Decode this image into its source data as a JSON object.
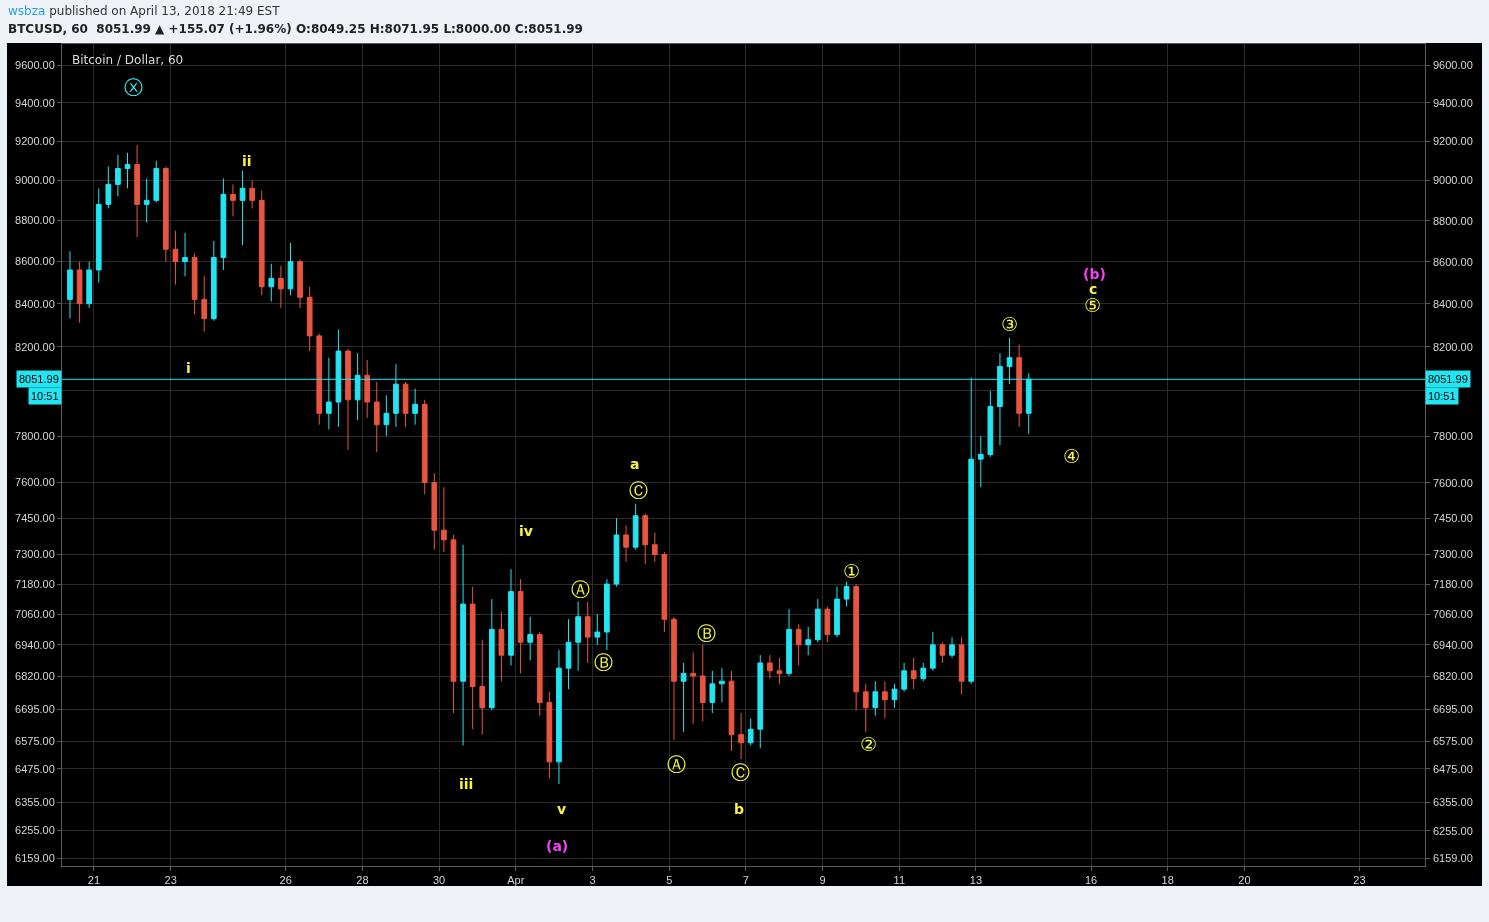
{
  "chart_data": {
    "type": "candlestick",
    "title": "Bitcoin / Dollar, 60",
    "annotations": [
      "wsbza published on April 13, 2018 21:49 EST",
      "BTCUSD, 60  8051.99 ▲ +155.07 (+1.96%) O:8049.25 H:8071.95 L:8000.00 C:8051.99",
      "10:51",
      "ⓧ",
      "ii",
      "i",
      "iii",
      "iv",
      "v",
      "(a)",
      "a",
      "Ⓒ",
      "Ⓐ",
      "Ⓑ",
      "Ⓑ",
      "Ⓐ",
      "Ⓒ",
      "b",
      "①",
      "②",
      "③",
      "④",
      "⑤",
      "c",
      "(b)"
    ],
    "x": [
      "2018-03-20T09:00",
      "2018-03-20T15:00",
      "2018-03-20T21:00",
      "2018-03-21T03:00",
      "2018-03-21T09:00",
      "2018-03-21T15:00",
      "2018-03-21T21:00",
      "2018-03-22T03:00",
      "2018-03-22T09:00",
      "2018-03-22T15:00",
      "2018-03-22T21:00",
      "2018-03-23T03:00",
      "2018-03-23T09:00",
      "2018-03-23T15:00",
      "2018-03-23T21:00",
      "2018-03-24T03:00",
      "2018-03-24T09:00",
      "2018-03-24T15:00",
      "2018-03-24T21:00",
      "2018-03-25T03:00",
      "2018-03-25T09:00",
      "2018-03-25T15:00",
      "2018-03-25T21:00",
      "2018-03-26T03:00",
      "2018-03-26T09:00",
      "2018-03-26T15:00",
      "2018-03-26T21:00",
      "2018-03-27T03:00",
      "2018-03-27T09:00",
      "2018-03-27T15:00",
      "2018-03-27T21:00",
      "2018-03-28T03:00",
      "2018-03-28T09:00",
      "2018-03-28T15:00",
      "2018-03-28T21:00",
      "2018-03-29T03:00",
      "2018-03-29T09:00",
      "2018-03-29T15:00",
      "2018-03-29T21:00",
      "2018-03-30T03:00",
      "2018-03-30T09:00",
      "2018-03-30T15:00",
      "2018-03-30T21:00",
      "2018-03-31T03:00",
      "2018-03-31T09:00",
      "2018-03-31T15:00",
      "2018-03-31T21:00",
      "2018-04-01T03:00",
      "2018-04-01T09:00",
      "2018-04-01T15:00",
      "2018-04-01T21:00",
      "2018-04-02T03:00",
      "2018-04-02T09:00",
      "2018-04-02T15:00",
      "2018-04-02T21:00",
      "2018-04-03T03:00",
      "2018-04-03T09:00",
      "2018-04-03T15:00",
      "2018-04-03T21:00",
      "2018-04-04T03:00",
      "2018-04-04T09:00",
      "2018-04-04T15:00",
      "2018-04-04T21:00",
      "2018-04-05T03:00",
      "2018-04-05T09:00",
      "2018-04-05T15:00",
      "2018-04-05T21:00",
      "2018-04-06T03:00",
      "2018-04-06T09:00",
      "2018-04-06T15:00",
      "2018-04-06T21:00",
      "2018-04-07T03:00",
      "2018-04-07T09:00",
      "2018-04-07T15:00",
      "2018-04-07T21:00",
      "2018-04-08T03:00",
      "2018-04-08T09:00",
      "2018-04-08T15:00",
      "2018-04-08T21:00",
      "2018-04-09T03:00",
      "2018-04-09T09:00",
      "2018-04-09T15:00",
      "2018-04-09T21:00",
      "2018-04-10T03:00",
      "2018-04-10T09:00",
      "2018-04-10T15:00",
      "2018-04-10T21:00",
      "2018-04-11T03:00",
      "2018-04-11T09:00",
      "2018-04-11T15:00",
      "2018-04-11T21:00",
      "2018-04-12T03:00",
      "2018-04-12T09:00",
      "2018-04-12T15:00",
      "2018-04-12T21:00",
      "2018-04-13T03:00",
      "2018-04-13T09:00",
      "2018-04-13T15:00",
      "2018-04-13T21:00",
      "2018-04-14T03:00",
      "2018-04-14T09:00"
    ],
    "ohlc": [
      [
        8420,
        8650,
        8330,
        8560
      ],
      [
        8560,
        8600,
        8310,
        8400
      ],
      [
        8400,
        8600,
        8380,
        8560
      ],
      [
        8560,
        8960,
        8500,
        8880
      ],
      [
        8880,
        9070,
        8860,
        8980
      ],
      [
        8980,
        9130,
        8920,
        9060
      ],
      [
        9060,
        9140,
        8960,
        9080
      ],
      [
        9080,
        9180,
        8720,
        8880
      ],
      [
        8880,
        9010,
        8790,
        8900
      ],
      [
        8900,
        9100,
        8890,
        9060
      ],
      [
        9060,
        9070,
        8600,
        8660
      ],
      [
        8660,
        8750,
        8490,
        8600
      ],
      [
        8600,
        8740,
        8530,
        8620
      ],
      [
        8620,
        8640,
        8350,
        8420
      ],
      [
        8420,
        8530,
        8270,
        8330
      ],
      [
        8330,
        8700,
        8320,
        8620
      ],
      [
        8620,
        9010,
        8560,
        8930
      ],
      [
        8930,
        8980,
        8820,
        8900
      ],
      [
        8900,
        9050,
        8680,
        8960
      ],
      [
        8960,
        9000,
        8860,
        8900
      ],
      [
        8900,
        8950,
        8440,
        8480
      ],
      [
        8480,
        8590,
        8410,
        8520
      ],
      [
        8520,
        8580,
        8380,
        8470
      ],
      [
        8470,
        8690,
        8440,
        8600
      ],
      [
        8600,
        8610,
        8380,
        8430
      ],
      [
        8430,
        8480,
        8180,
        8250
      ],
      [
        8250,
        8260,
        7850,
        7900
      ],
      [
        7900,
        8150,
        7830,
        7950
      ],
      [
        7950,
        8280,
        7840,
        8180
      ],
      [
        8180,
        8190,
        7740,
        7960
      ],
      [
        7960,
        8170,
        7870,
        8070
      ],
      [
        8070,
        8140,
        7880,
        7950
      ],
      [
        7950,
        8040,
        7730,
        7850
      ],
      [
        7850,
        7980,
        7800,
        7900
      ],
      [
        7900,
        8120,
        7840,
        8030
      ],
      [
        8030,
        8040,
        7840,
        7900
      ],
      [
        7900,
        8010,
        7850,
        7940
      ],
      [
        7940,
        7960,
        7550,
        7600
      ],
      [
        7600,
        7640,
        7320,
        7400
      ],
      [
        7400,
        7580,
        7310,
        7360
      ],
      [
        7360,
        7380,
        6680,
        6800
      ],
      [
        6800,
        7340,
        6560,
        7100
      ],
      [
        7100,
        7170,
        6620,
        6780
      ],
      [
        6780,
        6960,
        6600,
        6700
      ],
      [
        6700,
        7120,
        6690,
        7000
      ],
      [
        7000,
        7070,
        6800,
        6900
      ],
      [
        6900,
        7240,
        6860,
        7150
      ],
      [
        7150,
        7200,
        6830,
        6950
      ],
      [
        6950,
        7050,
        6880,
        6980
      ],
      [
        6980,
        6990,
        6670,
        6720
      ],
      [
        6720,
        6760,
        6440,
        6500
      ],
      [
        6500,
        6920,
        6420,
        6850
      ],
      [
        6850,
        7040,
        6770,
        6950
      ],
      [
        6950,
        7110,
        6840,
        7050
      ],
      [
        7050,
        7110,
        6870,
        6970
      ],
      [
        6970,
        7060,
        6940,
        6990
      ],
      [
        6990,
        7200,
        6920,
        7180
      ],
      [
        7180,
        7450,
        7170,
        7380
      ],
      [
        7380,
        7420,
        7270,
        7330
      ],
      [
        7330,
        7510,
        7320,
        7460
      ],
      [
        7460,
        7470,
        7260,
        7340
      ],
      [
        7340,
        7390,
        7270,
        7300
      ],
      [
        7300,
        7310,
        6990,
        7040
      ],
      [
        7040,
        7050,
        6580,
        6800
      ],
      [
        6800,
        6870,
        6610,
        6830
      ],
      [
        6830,
        6910,
        6640,
        6820
      ],
      [
        6820,
        6940,
        6650,
        6720
      ],
      [
        6720,
        6840,
        6680,
        6790
      ],
      [
        6790,
        6850,
        6720,
        6800
      ],
      [
        6800,
        6840,
        6540,
        6600
      ],
      [
        6600,
        6680,
        6510,
        6570
      ],
      [
        6570,
        6660,
        6560,
        6620
      ],
      [
        6620,
        6900,
        6550,
        6870
      ],
      [
        6870,
        6900,
        6810,
        6840
      ],
      [
        6840,
        6890,
        6790,
        6830
      ],
      [
        6830,
        7080,
        6820,
        7000
      ],
      [
        7000,
        7020,
        6860,
        6940
      ],
      [
        6940,
        7010,
        6900,
        6960
      ],
      [
        6960,
        7120,
        6950,
        7080
      ],
      [
        7080,
        7090,
        6950,
        6980
      ],
      [
        6980,
        7170,
        6970,
        7120
      ],
      [
        7120,
        7190,
        7090,
        7170
      ],
      [
        7170,
        7180,
        6690,
        6760
      ],
      [
        6760,
        6790,
        6610,
        6700
      ],
      [
        6700,
        6800,
        6670,
        6760
      ],
      [
        6760,
        6800,
        6660,
        6730
      ],
      [
        6730,
        6790,
        6700,
        6770
      ],
      [
        6770,
        6870,
        6760,
        6840
      ],
      [
        6840,
        6890,
        6770,
        6810
      ],
      [
        6810,
        6870,
        6800,
        6850
      ],
      [
        6850,
        6990,
        6840,
        6940
      ],
      [
        6940,
        6950,
        6870,
        6900
      ],
      [
        6900,
        6970,
        6890,
        6940
      ],
      [
        6940,
        6970,
        6750,
        6800
      ],
      [
        6800,
        8060,
        6790,
        7700
      ],
      [
        7700,
        7800,
        7580,
        7720
      ],
      [
        7720,
        8000,
        7710,
        7930
      ],
      [
        7930,
        8170,
        7760,
        8110
      ],
      [
        8110,
        8240,
        8030,
        8150
      ],
      [
        8150,
        8210,
        7840,
        7900
      ],
      [
        7900,
        8080,
        7810,
        8051.99
      ]
    ],
    "colors": [
      "#21e6f2",
      "#e8563f",
      "#21e6f2",
      "#21e6f2",
      "#21e6f2",
      "#21e6f2",
      "#21e6f2",
      "#e8563f",
      "#21e6f2",
      "#21e6f2",
      "#e8563f",
      "#e8563f",
      "#21e6f2",
      "#e8563f",
      "#e8563f",
      "#21e6f2",
      "#21e6f2",
      "#e8563f",
      "#21e6f2",
      "#e8563f",
      "#e8563f",
      "#21e6f2",
      "#e8563f",
      "#21e6f2",
      "#e8563f",
      "#e8563f",
      "#e8563f",
      "#21e6f2",
      "#21e6f2",
      "#e8563f",
      "#21e6f2",
      "#e8563f",
      "#e8563f",
      "#21e6f2",
      "#21e6f2",
      "#e8563f",
      "#21e6f2",
      "#e8563f",
      "#e8563f",
      "#e8563f",
      "#e8563f",
      "#21e6f2",
      "#e8563f",
      "#e8563f",
      "#21e6f2",
      "#e8563f",
      "#21e6f2",
      "#e8563f",
      "#21e6f2",
      "#e8563f",
      "#e8563f",
      "#21e6f2",
      "#21e6f2",
      "#21e6f2",
      "#e8563f",
      "#21e6f2",
      "#21e6f2",
      "#21e6f2",
      "#e8563f",
      "#21e6f2",
      "#e8563f",
      "#e8563f",
      "#e8563f",
      "#e8563f",
      "#21e6f2",
      "#e8563f",
      "#e8563f",
      "#21e6f2",
      "#21e6f2",
      "#e8563f",
      "#e8563f",
      "#21e6f2",
      "#21e6f2",
      "#e8563f",
      "#e8563f",
      "#21e6f2",
      "#e8563f",
      "#21e6f2",
      "#21e6f2",
      "#e8563f",
      "#21e6f2",
      "#21e6f2",
      "#e8563f",
      "#e8563f",
      "#21e6f2",
      "#e8563f",
      "#21e6f2",
      "#21e6f2",
      "#e8563f",
      "#21e6f2",
      "#21e6f2",
      "#e8563f",
      "#21e6f2",
      "#e8563f",
      "#21e6f2",
      "#21e6f2",
      "#21e6f2",
      "#21e6f2",
      "#21e6f2",
      "#e8563f",
      "#21e6f2"
    ],
    "xlim": [
      "2018-03-20T04:00",
      "2018-04-24T17:00"
    ],
    "xticks": [
      {
        "value": "2018-03-21",
        "label": "21"
      },
      {
        "value": "2018-03-23",
        "label": "23"
      },
      {
        "value": "2018-03-26",
        "label": "26"
      },
      {
        "value": "2018-03-28",
        "label": "28"
      },
      {
        "value": "2018-03-30",
        "label": "30"
      },
      {
        "value": "2018-04-01",
        "label": "Apr"
      },
      {
        "value": "2018-04-03",
        "label": "3"
      },
      {
        "value": "2018-04-05",
        "label": "5"
      },
      {
        "value": "2018-04-07",
        "label": "7"
      },
      {
        "value": "2018-04-09",
        "label": "9"
      },
      {
        "value": "2018-04-11",
        "label": "11"
      },
      {
        "value": "2018-04-13",
        "label": "13"
      },
      {
        "value": "2018-04-16",
        "label": "16"
      },
      {
        "value": "2018-04-18",
        "label": "18"
      },
      {
        "value": "2018-04-20",
        "label": "20"
      },
      {
        "value": "2018-04-23",
        "label": "23"
      }
    ],
    "ylim": [
      6132,
      9714
    ],
    "yticks": [
      {
        "value": 9600,
        "label": "9600.00"
      },
      {
        "value": 9400,
        "label": "9400.00"
      },
      {
        "value": 9200,
        "label": "9200.00"
      },
      {
        "value": 9000,
        "label": "9000.00"
      },
      {
        "value": 8800,
        "label": "8800.00"
      },
      {
        "value": 8600,
        "label": "8600.00"
      },
      {
        "value": 8400,
        "label": "8400.00"
      },
      {
        "value": 8200,
        "label": "8200.00"
      },
      {
        "value": 8000,
        "label": null
      },
      {
        "value": 7800,
        "label": "7800.00"
      },
      {
        "value": 7600,
        "label": "7600.00"
      },
      {
        "value": 7450,
        "label": "7450.00"
      },
      {
        "value": 7300,
        "label": "7300.00"
      },
      {
        "value": 7180,
        "label": "7180.00"
      },
      {
        "value": 7060,
        "label": "7060.00"
      },
      {
        "value": 6940,
        "label": "6940.00"
      },
      {
        "value": 6820,
        "label": "6820.00"
      },
      {
        "value": 6695,
        "label": "6695.00"
      },
      {
        "value": 6575,
        "label": "6575.00"
      },
      {
        "value": 6475,
        "label": "6475.00"
      },
      {
        "value": 6355,
        "label": "6355.00"
      },
      {
        "value": 6255,
        "label": "6255.00"
      },
      {
        "value": 6159,
        "label": "6159.00"
      }
    ],
    "ref_lines": [
      {
        "axis": "y",
        "value": 8051.99,
        "label": "8051.99",
        "color": "#21e6f2"
      }
    ],
    "log": true,
    "grid": true
  }
}
